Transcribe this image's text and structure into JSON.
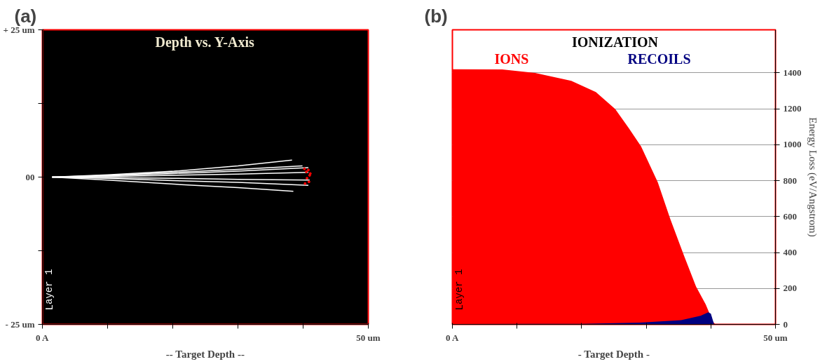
{
  "chart_data": [
    {
      "type": "line",
      "title": "Depth vs. Y-Axis",
      "xlabel": "-- Target Depth --",
      "annotations": [
        "(a)",
        "Layer 1"
      ],
      "xlim": [
        0,
        50
      ],
      "ylim": [
        -25,
        25
      ],
      "xticks": [
        {
          "value": 0,
          "label": "0 A"
        },
        {
          "value": 10,
          "label": null
        },
        {
          "value": 20,
          "label": null
        },
        {
          "value": 30,
          "label": null
        },
        {
          "value": 40,
          "label": null
        },
        {
          "value": 50,
          "label": "50 um"
        }
      ],
      "yticks": [
        {
          "value": -25,
          "label": "- 25 um"
        },
        {
          "value": -12.5,
          "label": null
        },
        {
          "value": 0,
          "label": "00"
        },
        {
          "value": 12.5,
          "label": null
        },
        {
          "value": 25,
          "label": "+ 25 um"
        }
      ],
      "grid": false,
      "marker": "none",
      "line_style": "solid",
      "series": [
        {
          "color": "#ffffff",
          "x": [
            1.5,
            10,
            20.2,
            30,
            38.3
          ],
          "values": [
            0,
            0.4,
            1.0,
            1.9,
            2.9
          ]
        },
        {
          "color": "#ffffff",
          "x": [
            1.5,
            10,
            20,
            30,
            39.9
          ],
          "values": [
            0,
            0.3,
            0.8,
            1.3,
            1.9
          ]
        },
        {
          "color": "#ffffff",
          "x": [
            1.5,
            10,
            20,
            30,
            40.8
          ],
          "values": [
            0,
            0.2,
            0.6,
            1.0,
            1.6
          ]
        },
        {
          "color": "#ffffff",
          "x": [
            1.5,
            10,
            20,
            30,
            40.8
          ],
          "values": [
            0,
            0.1,
            0.3,
            0.5,
            0.8
          ]
        },
        {
          "color": "#ffffff",
          "x": [
            1.5,
            10,
            20,
            30,
            41
          ],
          "values": [
            0,
            -0.1,
            -0.2,
            -0.4,
            -0.5
          ]
        },
        {
          "color": "#ffffff",
          "x": [
            1.5,
            10,
            20,
            30,
            40.8
          ],
          "values": [
            0,
            -0.2,
            -0.6,
            -0.9,
            -1.4
          ]
        },
        {
          "color": "#ffffff",
          "x": [
            1.5,
            10,
            20.2,
            30,
            38.5
          ],
          "values": [
            0,
            -0.5,
            -1.2,
            -1.8,
            -2.4
          ]
        },
        {
          "type": "scatter",
          "color": "#ff0000",
          "x": [
            40.2,
            40.5,
            40.8,
            41.0,
            40.6,
            40.9,
            40.3,
            41.1
          ],
          "values": [
            1.4,
            0.9,
            1.2,
            0.3,
            -0.2,
            -0.8,
            -1.1,
            0.6
          ]
        }
      ]
    },
    {
      "type": "area",
      "title": "IONIZATION",
      "xlabel": "- Target Depth -",
      "ylabel": "Energy Loss (eV/Angstrom)",
      "annotations": [
        "(b)",
        "Layer 1"
      ],
      "xlim": [
        0,
        50
      ],
      "ylim": [
        0,
        1640
      ],
      "xticks": [
        {
          "value": 0,
          "label": "0 A"
        },
        {
          "value": 10,
          "label": null
        },
        {
          "value": 20,
          "label": null
        },
        {
          "value": 30,
          "label": null
        },
        {
          "value": 40,
          "label": null
        },
        {
          "value": 50,
          "label": "50 um"
        }
      ],
      "yticks": [
        0,
        200,
        400,
        600,
        800,
        1000,
        1200,
        1400
      ],
      "grid": "y",
      "series": [
        {
          "name": "IONS",
          "color": "#ff0000",
          "x": [
            0,
            7.7,
            12.8,
            18.4,
            22.2,
            25.2,
            27.3,
            29.2,
            31.8,
            33.7,
            35.8,
            37.7,
            39.2,
            39.8,
            40.3,
            40.7
          ],
          "values": [
            1420,
            1419,
            1400,
            1356,
            1293,
            1199,
            1092,
            991,
            790,
            589,
            387,
            211,
            111,
            60,
            16,
            0
          ]
        },
        {
          "name": "RECOILS",
          "color": "#000080",
          "x": [
            0,
            20,
            29,
            35.4,
            38.4,
            39.6,
            40,
            40.5
          ],
          "values": [
            2,
            3,
            10,
            23,
            48,
            67,
            60,
            0
          ]
        }
      ]
    }
  ]
}
